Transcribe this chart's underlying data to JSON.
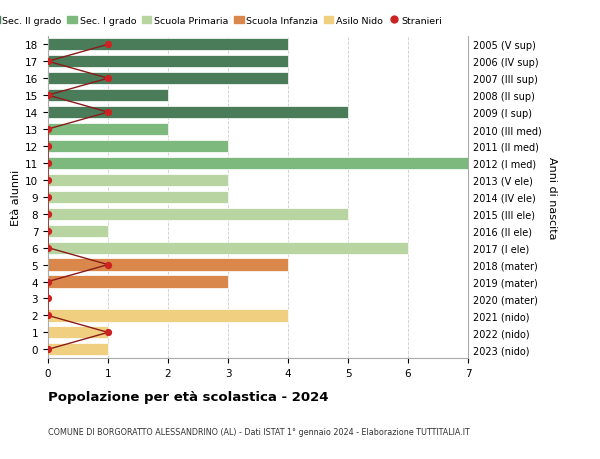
{
  "ages": [
    18,
    17,
    16,
    15,
    14,
    13,
    12,
    11,
    10,
    9,
    8,
    7,
    6,
    5,
    4,
    3,
    2,
    1,
    0
  ],
  "right_labels": [
    "2005 (V sup)",
    "2006 (IV sup)",
    "2007 (III sup)",
    "2008 (II sup)",
    "2009 (I sup)",
    "2010 (III med)",
    "2011 (II med)",
    "2012 (I med)",
    "2013 (V ele)",
    "2014 (IV ele)",
    "2015 (III ele)",
    "2016 (II ele)",
    "2017 (I ele)",
    "2018 (mater)",
    "2019 (mater)",
    "2020 (mater)",
    "2021 (nido)",
    "2022 (nido)",
    "2023 (nido)"
  ],
  "bar_values": [
    4,
    4,
    4,
    2,
    5,
    2,
    3,
    7,
    3,
    3,
    5,
    1,
    6,
    4,
    3,
    0,
    4,
    1,
    1
  ],
  "bar_colors": [
    "#4a7c59",
    "#4a7c59",
    "#4a7c59",
    "#4a7c59",
    "#4a7c59",
    "#7db87d",
    "#7db87d",
    "#7db87d",
    "#b8d4a0",
    "#b8d4a0",
    "#b8d4a0",
    "#b8d4a0",
    "#b8d4a0",
    "#d9874a",
    "#d9874a",
    "#d9874a",
    "#f0d080",
    "#f0d080",
    "#f0d080"
  ],
  "stranieri_x": [
    1,
    0,
    1,
    0,
    1,
    0,
    0,
    0,
    0,
    0,
    0,
    0,
    0,
    1,
    0,
    0,
    0,
    1,
    0
  ],
  "line_color": "#8b1a1a",
  "dot_color": "#cc2222",
  "legend_entries": [
    {
      "label": "Sec. II grado",
      "color": "#4a7c59"
    },
    {
      "label": "Sec. I grado",
      "color": "#7db87d"
    },
    {
      "label": "Scuola Primaria",
      "color": "#b8d4a0"
    },
    {
      "label": "Scuola Infanzia",
      "color": "#d9874a"
    },
    {
      "label": "Asilo Nido",
      "color": "#f0d080"
    },
    {
      "label": "Stranieri",
      "color": "#cc2222"
    }
  ],
  "xlabel_left": "Età alunni",
  "xlabel_right": "Anni di nascita",
  "xlim": [
    0,
    7
  ],
  "ylim_min": -0.5,
  "ylim_max": 18.5,
  "title": "Popolazione per età scolastica - 2024",
  "subtitle": "COMUNE DI BORGORATTO ALESSANDRINO (AL) - Dati ISTAT 1° gennaio 2024 - Elaborazione TUTTITALIA.IT",
  "bg_color": "#ffffff",
  "grid_color": "#cccccc",
  "bar_height": 0.72
}
